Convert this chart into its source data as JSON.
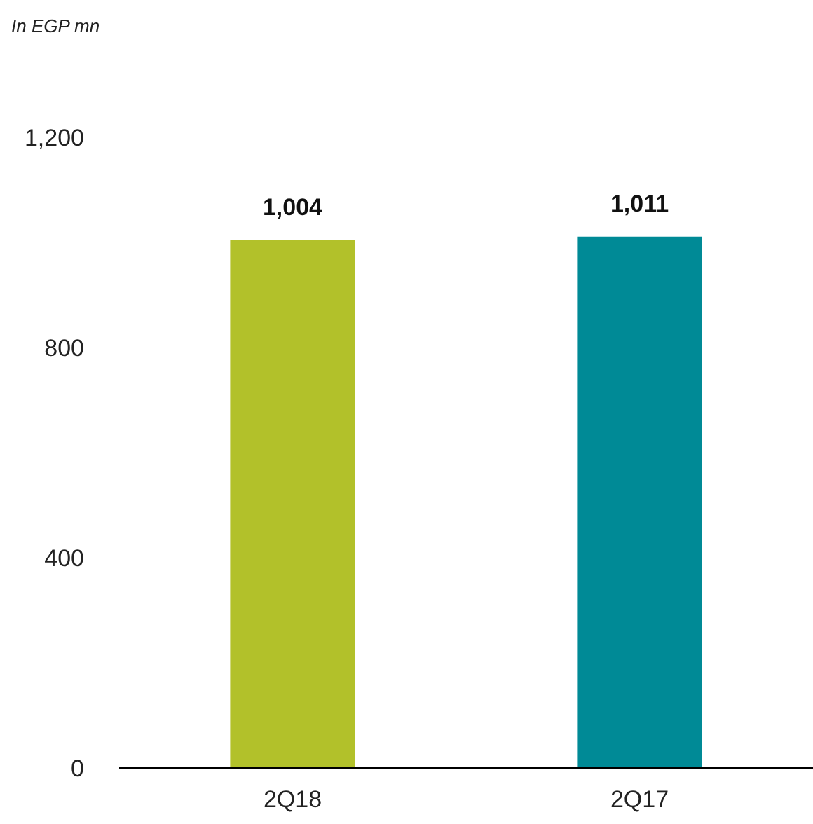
{
  "chart_data": {
    "type": "bar",
    "ylabel": "In EGP mn",
    "categories": [
      "2Q18",
      "2Q17"
    ],
    "values": [
      1004,
      1011
    ],
    "value_labels": [
      "1,004",
      "1,011"
    ],
    "colors": [
      "#b2c12a",
      "#008a96"
    ],
    "ylim": [
      0,
      1200
    ],
    "yticks": [
      0,
      400,
      800,
      {
        "value": 1200,
        "label": "1,200"
      }
    ],
    "grid": false
  }
}
